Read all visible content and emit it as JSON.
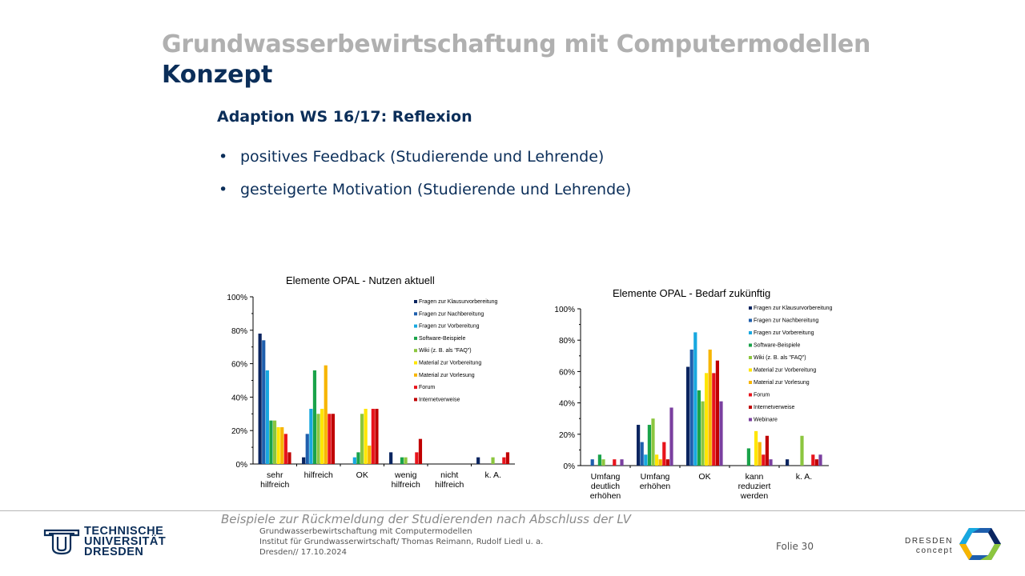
{
  "slide": {
    "title_main": "Grundwasserbewirtschaftung mit Computermodellen",
    "title_sub": "Konzept",
    "section_heading": "Adaption WS 16/17: Reflexion",
    "bullets": [
      "positives Feedback (Studierende und Lehrende)",
      "gesteigerte Motivation (Studierende und Lehrende)"
    ],
    "caption": "Beispiele zur Rückmeldung der Studierenden nach Abschluss der LV"
  },
  "footer": {
    "line1": "Grundwasserbewirtschaftung mit Computermodellen",
    "line2": "Institut für Grundwasserwirtschaft/ Thomas Reimann, Rudolf Liedl u. a.",
    "line3": "Dresden// 17.10.2024",
    "folio": "Folie 30",
    "logo_tud": [
      "TECHNISCHE",
      "UNIVERSITÄT",
      "DRESDEN"
    ],
    "logo_dc": [
      "DRESDEN",
      "concept"
    ]
  },
  "colors": {
    "title_gray": "#b0b0b0",
    "title_blue": "#0b2e59",
    "series": [
      "#0b2560",
      "#1f5fad",
      "#18a8e0",
      "#1aa34a",
      "#8cc63f",
      "#ffe600",
      "#f7b500",
      "#e8141c",
      "#c00000",
      "#7a3f9f"
    ]
  },
  "chart_data": [
    {
      "type": "bar",
      "title": "Elemente OPAL - Nutzen aktuell",
      "ylim": [
        0,
        100
      ],
      "yticks": [
        "0%",
        "20%",
        "40%",
        "60%",
        "80%",
        "100%"
      ],
      "legend_position": "top-right",
      "categories": [
        "sehr\nhilfreich",
        "hilfreich",
        "OK",
        "wenig\nhilfreich",
        "nicht\nhilfreich",
        "k. A."
      ],
      "series": [
        {
          "name": "Fragen zur Klausurvorbereitung",
          "values": [
            78,
            4,
            0,
            7,
            0,
            4
          ]
        },
        {
          "name": "Fragen zur Nachbereitung",
          "values": [
            74,
            18,
            0,
            0,
            0,
            0
          ]
        },
        {
          "name": "Fragen zur Vorbereitung",
          "values": [
            56,
            33,
            4,
            0,
            0,
            0
          ]
        },
        {
          "name": "Software-Beispiele",
          "values": [
            26,
            56,
            7,
            4,
            0,
            0
          ]
        },
        {
          "name": "Wiki (z. B. als \"FAQ\")",
          "values": [
            26,
            30,
            30,
            4,
            0,
            4
          ]
        },
        {
          "name": "Material zur Vorbereitung",
          "values": [
            22,
            33,
            33,
            0,
            0,
            0
          ]
        },
        {
          "name": "Material zur Vorlesung",
          "values": [
            22,
            59,
            11,
            0,
            0,
            0
          ]
        },
        {
          "name": "Forum",
          "values": [
            18,
            30,
            33,
            7,
            0,
            4
          ]
        },
        {
          "name": "Internetverweise",
          "values": [
            7,
            30,
            33,
            15,
            0,
            7
          ]
        }
      ]
    },
    {
      "type": "bar",
      "title": "Elemente OPAL - Bedarf zukünftig",
      "ylim": [
        0,
        100
      ],
      "yticks": [
        "0%",
        "20%",
        "40%",
        "60%",
        "80%",
        "100%"
      ],
      "legend_position": "top-right",
      "categories": [
        "Umfang\ndeutlich\nerhöhen",
        "Umfang\nerhöhen",
        "OK",
        "kann\nreduziert\nwerden",
        "k. A."
      ],
      "series": [
        {
          "name": "Fragen zur Klausurvorbereitung",
          "values": [
            0,
            26,
            63,
            0,
            4
          ]
        },
        {
          "name": "Fragen zur Nachbereitung",
          "values": [
            4,
            15,
            74,
            0,
            0
          ]
        },
        {
          "name": "Fragen zur Vorbereitung",
          "values": [
            0,
            7,
            85,
            0,
            0
          ]
        },
        {
          "name": "Software-Beispiele",
          "values": [
            7,
            26,
            48,
            11,
            0
          ]
        },
        {
          "name": "Wiki (z. B. als \"FAQ\")",
          "values": [
            4,
            30,
            41,
            0,
            19
          ]
        },
        {
          "name": "Material zur Vorbereitung",
          "values": [
            0,
            7,
            59,
            22,
            0
          ]
        },
        {
          "name": "Material zur Vorlesung",
          "values": [
            0,
            4,
            74,
            15,
            0
          ]
        },
        {
          "name": "Forum",
          "values": [
            4,
            15,
            59,
            7,
            7
          ]
        },
        {
          "name": "Internetverweise",
          "values": [
            0,
            4,
            67,
            19,
            4
          ]
        },
        {
          "name": "Webinare",
          "values": [
            4,
            37,
            41,
            4,
            7
          ]
        }
      ]
    }
  ]
}
